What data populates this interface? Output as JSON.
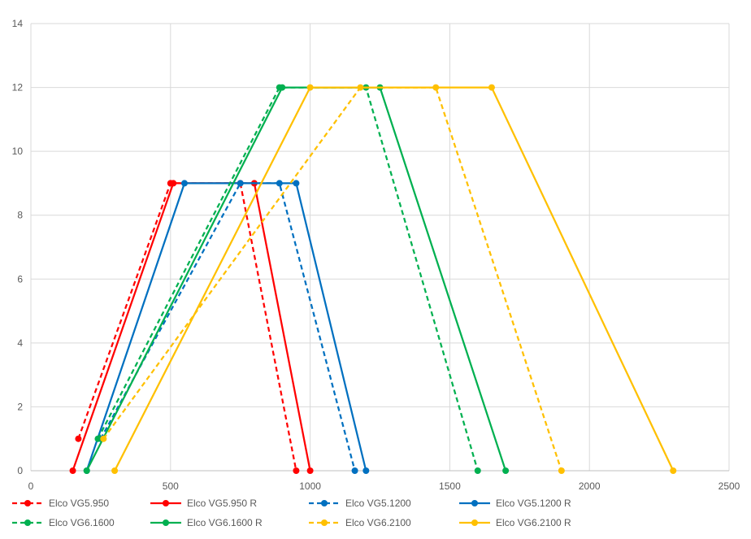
{
  "chart_data": {
    "type": "line",
    "title": "",
    "xlabel": "",
    "ylabel": "",
    "xlim": [
      0,
      2500
    ],
    "ylim": [
      0,
      14
    ],
    "x_ticks": [
      0,
      500,
      1000,
      1500,
      2000,
      2500
    ],
    "y_ticks": [
      0,
      2,
      4,
      6,
      8,
      10,
      12,
      14
    ],
    "x_tick_labels": [
      "0",
      "500",
      "1000",
      "1500",
      "2000",
      "2500"
    ],
    "y_tick_labels": [
      "0",
      "2",
      "4",
      "6",
      "8",
      "10",
      "12",
      "14"
    ],
    "grid": true,
    "legend_position": "bottom",
    "series": [
      {
        "name": "Elco VG5.950",
        "color": "#ff0000",
        "dashed": true,
        "points": [
          [
            170,
            1
          ],
          [
            500,
            9
          ],
          [
            750,
            9
          ],
          [
            950,
            0
          ]
        ]
      },
      {
        "name": "Elco VG5.950 R",
        "color": "#ff0000",
        "dashed": false,
        "points": [
          [
            150,
            0
          ],
          [
            510,
            9
          ],
          [
            800,
            9
          ],
          [
            1000,
            0
          ]
        ]
      },
      {
        "name": "Elco VG5.1200",
        "color": "#0070c0",
        "dashed": true,
        "points": [
          [
            250,
            1
          ],
          [
            750,
            9
          ],
          [
            890,
            9
          ],
          [
            1160,
            0
          ]
        ]
      },
      {
        "name": "Elco VG5.1200 R",
        "color": "#0070c0",
        "dashed": false,
        "points": [
          [
            200,
            0
          ],
          [
            550,
            9
          ],
          [
            950,
            9
          ],
          [
            1200,
            0
          ]
        ]
      },
      {
        "name": "Elco VG6.1600",
        "color": "#00b050",
        "dashed": true,
        "points": [
          [
            240,
            1
          ],
          [
            890,
            12
          ],
          [
            1200,
            12
          ],
          [
            1600,
            0
          ]
        ]
      },
      {
        "name": "Elco VG6.1600 R",
        "color": "#00b050",
        "dashed": false,
        "points": [
          [
            200,
            0
          ],
          [
            900,
            12
          ],
          [
            1250,
            12
          ],
          [
            1700,
            0
          ]
        ]
      },
      {
        "name": "Elco VG6.2100",
        "color": "#ffc000",
        "dashed": true,
        "points": [
          [
            260,
            1
          ],
          [
            1180,
            12
          ],
          [
            1450,
            12
          ],
          [
            1900,
            0
          ]
        ]
      },
      {
        "name": "Elco VG6.2100 R",
        "color": "#ffc000",
        "dashed": false,
        "points": [
          [
            300,
            0
          ],
          [
            1000,
            12
          ],
          [
            1650,
            12
          ],
          [
            2300,
            0
          ]
        ]
      }
    ]
  }
}
